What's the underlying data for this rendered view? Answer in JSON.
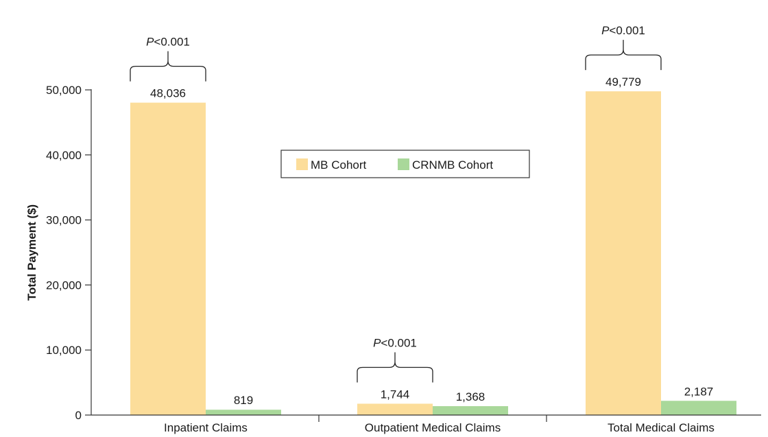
{
  "chart_data": {
    "type": "bar",
    "ylabel": "Total Payment ($)",
    "xlabel": "",
    "ylim": [
      0,
      50000
    ],
    "yticks": [
      0,
      10000,
      20000,
      30000,
      40000,
      50000
    ],
    "ytick_labels": [
      "0",
      "10,000",
      "20,000",
      "30,000",
      "40,000",
      "50,000"
    ],
    "categories": [
      "Inpatient Claims",
      "Outpatient Medical Claims",
      "Total Medical Claims"
    ],
    "series": [
      {
        "name": "MB Cohort",
        "color": "#FCDD9A",
        "values": [
          48036,
          1744,
          49779
        ],
        "value_labels": [
          "48,036",
          "1,744",
          "49,779"
        ]
      },
      {
        "name": "CRNMB Cohort",
        "color": "#A9D89A",
        "values": [
          819,
          1368,
          2187
        ],
        "value_labels": [
          "819",
          "1,368",
          "2,187"
        ]
      }
    ],
    "legend": {
      "placement": "center",
      "entries": [
        "MB Cohort",
        "CRNMB Cohort"
      ]
    },
    "grid": false,
    "annotations": [
      {
        "category": "Inpatient Claims",
        "p_symbol": "P",
        "p_rest": "<0.001"
      },
      {
        "category": "Outpatient Medical Claims",
        "p_symbol": "P",
        "p_rest": "<0.001"
      },
      {
        "category": "Total Medical Claims",
        "p_symbol": "P",
        "p_rest": "<0.001"
      }
    ]
  }
}
